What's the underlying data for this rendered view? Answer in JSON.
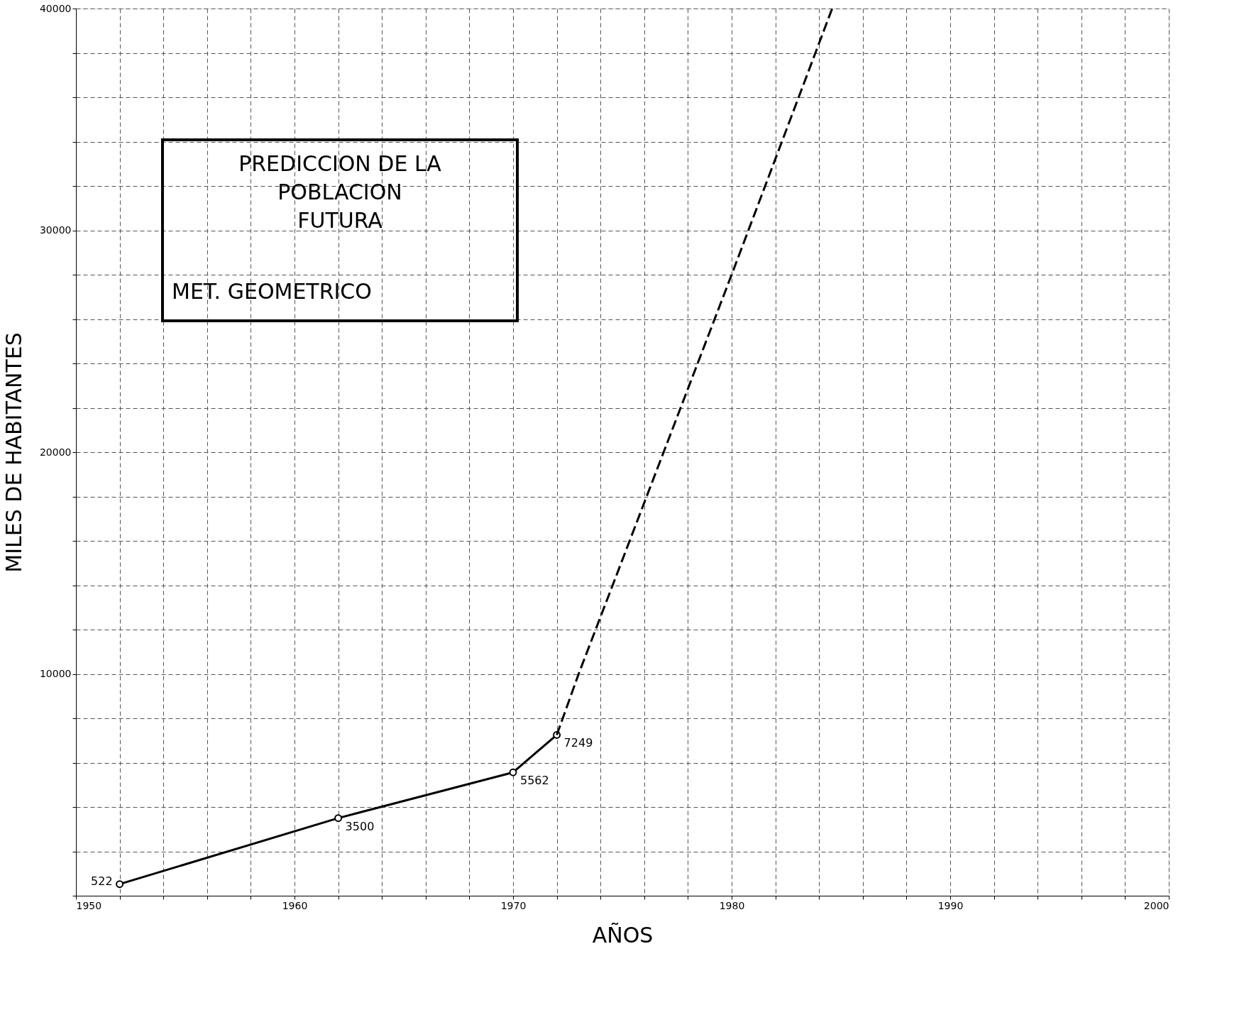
{
  "chart_data": {
    "type": "line",
    "title": "PREDICCION DE LA\nPOBLACION\nFUTURA",
    "subtitle": "MET. GEOMETRICO",
    "xlabel": "AÑOS",
    "ylabel": "MILES DE HABITANTES",
    "xlim": [
      1950,
      2000
    ],
    "ylim": [
      0,
      40000
    ],
    "xticks": [
      1950,
      {
        "value": 1952,
        "label": null
      },
      {
        "value": 1954,
        "label": null
      },
      {
        "value": 1956,
        "label": null
      },
      {
        "value": 1958,
        "label": null
      },
      1960,
      {
        "value": 1962,
        "label": null
      },
      {
        "value": 1964,
        "label": null
      },
      {
        "value": 1966,
        "label": null
      },
      {
        "value": 1968,
        "label": null
      },
      1970,
      {
        "value": 1972,
        "label": null
      },
      {
        "value": 1974,
        "label": null
      },
      {
        "value": 1976,
        "label": null
      },
      {
        "value": 1978,
        "label": null
      },
      1980,
      {
        "value": 1982,
        "label": null
      },
      {
        "value": 1984,
        "label": null
      },
      {
        "value": 1986,
        "label": null
      },
      {
        "value": 1988,
        "label": null
      },
      1990,
      {
        "value": 1992,
        "label": null
      },
      {
        "value": 1994,
        "label": null
      },
      {
        "value": 1996,
        "label": null
      },
      {
        "value": 1998,
        "label": null
      },
      2000
    ],
    "yticks": [
      {
        "value": 0,
        "label": null
      },
      {
        "value": 2000,
        "label": null
      },
      {
        "value": 4000,
        "label": null
      },
      {
        "value": 6000,
        "label": null
      },
      {
        "value": 8000,
        "label": null
      },
      10000,
      {
        "value": 12000,
        "label": null
      },
      {
        "value": 14000,
        "label": null
      },
      {
        "value": 16000,
        "label": null
      },
      {
        "value": 18000,
        "label": null
      },
      20000,
      {
        "value": 22000,
        "label": null
      },
      {
        "value": 24000,
        "label": null
      },
      {
        "value": 26000,
        "label": null
      },
      {
        "value": 28000,
        "label": null
      },
      30000,
      {
        "value": 32000,
        "label": null
      },
      {
        "value": 34000,
        "label": null
      },
      {
        "value": 36000,
        "label": null
      },
      {
        "value": 38000,
        "label": null
      },
      40000
    ],
    "grid": true,
    "legend": false,
    "series": [
      {
        "color": "#000000",
        "x": [
          1952,
          1962,
          1970,
          1972
        ],
        "values": [
          522,
          3500,
          5562,
          7249
        ],
        "marker": "circle",
        "line_style": "solid",
        "data_labels": true
      },
      {
        "color": "#000000",
        "x": [
          1972,
          1973,
          1980,
          1984.6
        ],
        "values": [
          7249,
          10000,
          28000,
          40000
        ],
        "marker": "none",
        "line_style": "dashed"
      }
    ]
  }
}
